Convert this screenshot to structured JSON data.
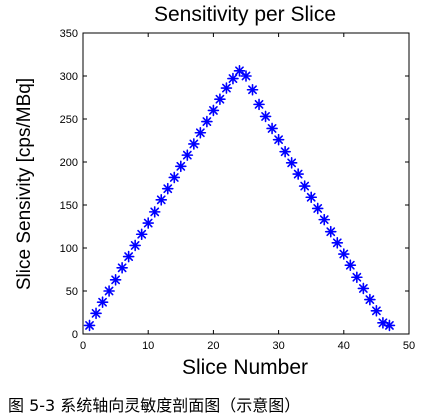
{
  "caption": "图 5-3 系统轴向灵敏度剖面图（示意图）",
  "chart_data": {
    "type": "scatter",
    "title": "Sensitivity per Slice",
    "xlabel": "Slice Number",
    "ylabel": "Slice Sensivity [cps/MBq]",
    "xlim": [
      0,
      50
    ],
    "ylim": [
      0,
      350
    ],
    "xticks": [
      0,
      10,
      20,
      30,
      40,
      50
    ],
    "yticks": [
      0,
      50,
      100,
      150,
      200,
      250,
      300,
      350
    ],
    "grid": false,
    "marker": "asterisk",
    "color": "#0000ff",
    "series": [
      {
        "name": "",
        "x": [
          1,
          2,
          3,
          4,
          5,
          6,
          7,
          8,
          9,
          10,
          11,
          12,
          13,
          14,
          15,
          16,
          17,
          18,
          19,
          20,
          21,
          22,
          23,
          24,
          25,
          26,
          27,
          28,
          29,
          30,
          31,
          32,
          33,
          34,
          35,
          36,
          37,
          38,
          39,
          40,
          41,
          42,
          43,
          44,
          45,
          46,
          47
        ],
        "y": [
          10,
          24,
          37,
          50,
          63,
          77,
          90,
          103,
          116,
          129,
          142,
          156,
          169,
          182,
          195,
          208,
          221,
          234,
          247,
          260,
          273,
          286,
          297,
          306,
          300,
          284,
          267,
          253,
          239,
          226,
          212,
          199,
          186,
          172,
          159,
          146,
          133,
          119,
          106,
          93,
          80,
          66,
          53,
          40,
          27,
          13,
          10
        ]
      }
    ]
  }
}
